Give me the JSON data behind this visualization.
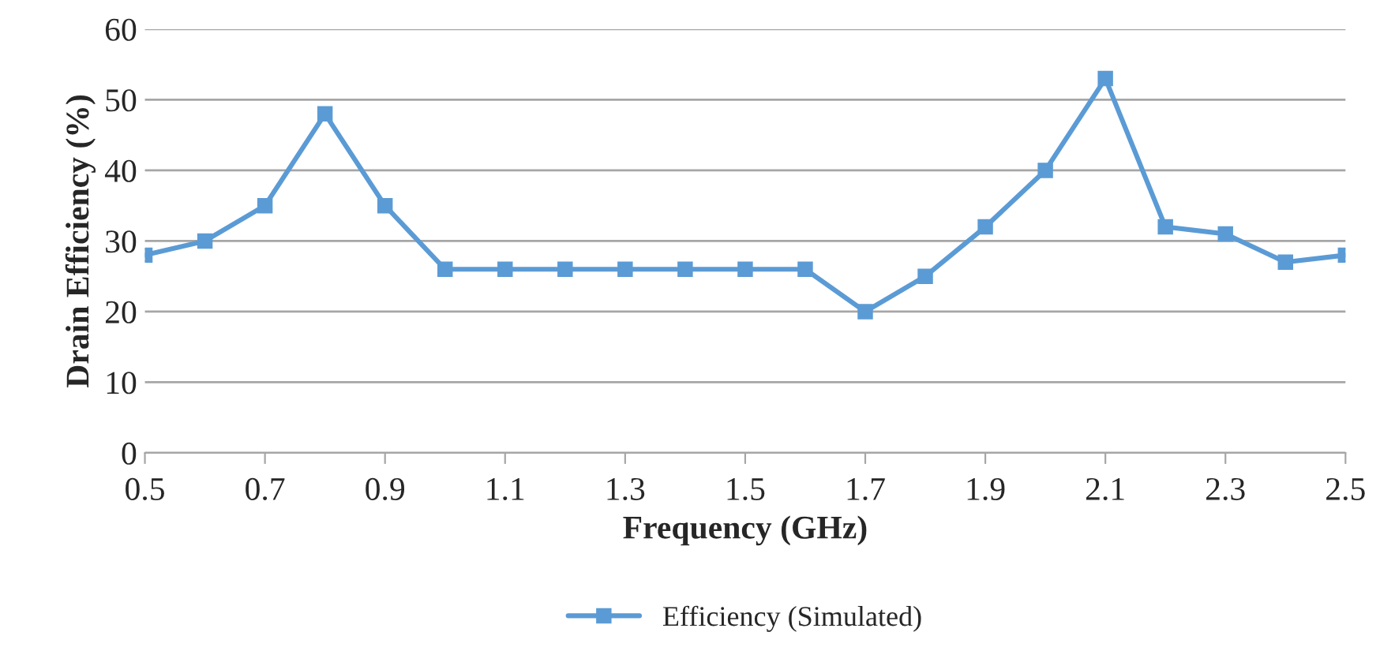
{
  "chart_data": {
    "type": "line",
    "xlabel": "Frequency (GHz)",
    "ylabel": "Drain Efficiency (%)",
    "x": [
      0.5,
      0.6,
      0.7,
      0.8,
      0.9,
      1.0,
      1.1,
      1.2,
      1.3,
      1.4,
      1.5,
      1.6,
      1.7,
      1.8,
      1.9,
      2.0,
      2.1,
      2.2,
      2.3,
      2.4,
      2.5
    ],
    "series": [
      {
        "name": "Efficiency (Simulated)",
        "color": "#5b9bd5",
        "values": [
          28,
          30,
          35,
          48,
          35,
          26,
          26,
          26,
          26,
          26,
          26,
          26,
          20,
          25,
          32,
          40,
          53,
          32,
          31,
          27,
          28
        ]
      }
    ],
    "xlim": [
      0.5,
      2.5
    ],
    "xticks": [
      0.5,
      0.7,
      0.9,
      1.1,
      1.3,
      1.5,
      1.7,
      1.9,
      2.1,
      2.3,
      2.5
    ],
    "ylim": [
      0,
      60
    ],
    "yticks": [
      0,
      10,
      20,
      30,
      40,
      50,
      60
    ],
    "grid": "y",
    "legend": "bottom",
    "marker": "square",
    "line_style": "solid"
  }
}
